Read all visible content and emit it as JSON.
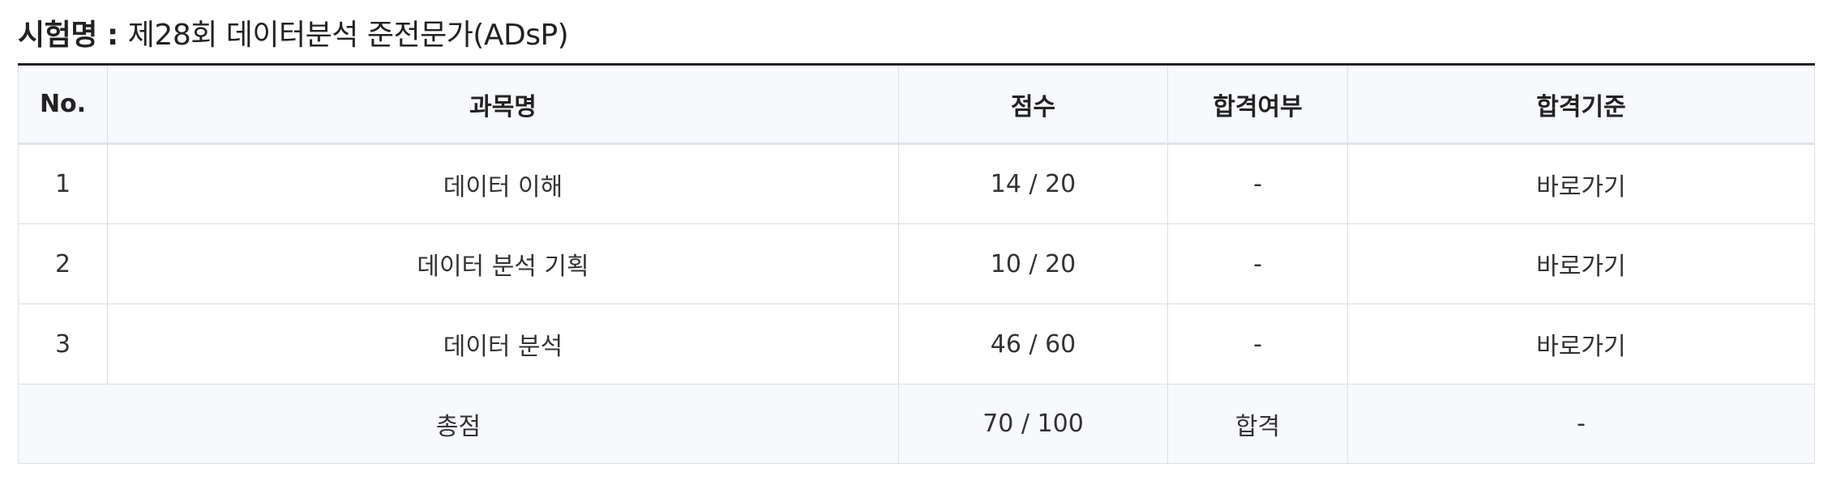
{
  "exam": {
    "label": "시험명 :",
    "name": "제28회 데이터분석 준전문가(ADsP)"
  },
  "table": {
    "headers": {
      "no": "No.",
      "subject": "과목명",
      "score": "점수",
      "pass_status": "합격여부",
      "pass_criteria": "합격기준"
    },
    "rows": [
      {
        "no": "1",
        "subject": "데이터 이해",
        "score": "14 / 20",
        "pass_status": "-",
        "pass_criteria": "바로가기"
      },
      {
        "no": "2",
        "subject": "데이터 분석 기획",
        "score": "10 / 20",
        "pass_status": "-",
        "pass_criteria": "바로가기"
      },
      {
        "no": "3",
        "subject": "데이터 분석",
        "score": "46 / 60",
        "pass_status": "-",
        "pass_criteria": "바로가기"
      }
    ],
    "total": {
      "label": "총점",
      "score": "70 / 100",
      "pass_status": "합격",
      "pass_criteria": "-"
    }
  }
}
